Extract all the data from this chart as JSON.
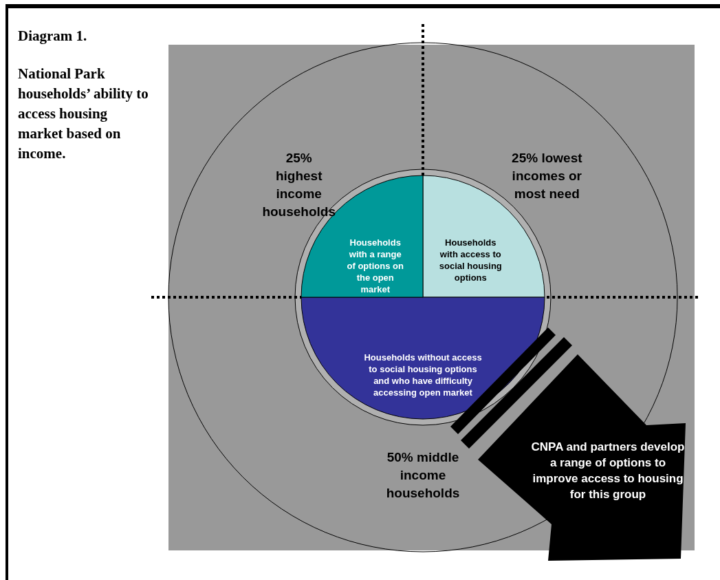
{
  "chart_data": {
    "type": "pie",
    "title": "Diagram 1.",
    "subtitle": "National Park households’ ability to access housing market based on income.",
    "categories": [
      "Households with access to social housing options",
      "Households without access to social housing options and who have difficulty accessing open market",
      "Households with a range of options on the open market"
    ],
    "values": [
      25,
      50,
      25
    ],
    "colors": [
      "#b8e0e0",
      "#333399",
      "#009999"
    ],
    "value_labels": [
      "25% lowest incomes or most need",
      "50% middle income households",
      "25% highest income households"
    ],
    "annotations": [
      "CNPA and partners develop a range of options to improve access to housing for this group"
    ]
  }
}
